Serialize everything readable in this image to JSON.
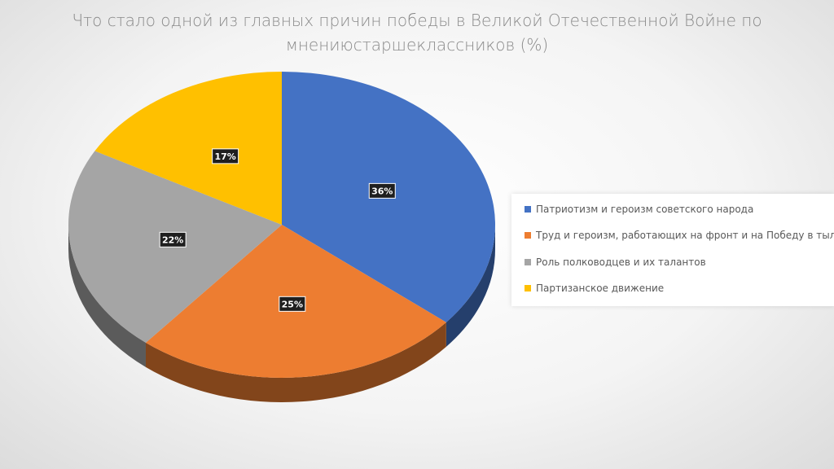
{
  "title_line1": "Что стало одной из главных причин победы в Великой Отечественной Войне по",
  "title_line2": "мнениюстаршеклассников (%)",
  "chart_data": {
    "type": "pie",
    "title": "Что стало одной из главных причин победы в Великой Отечественной Войне по мнениюстаршеклассников (%)",
    "legend_position": "right",
    "labels": [
      "Патриотизм и героизм советского народа",
      "Труд  и героизм, работающих на фронт и на Победу в тылу",
      "Роль полководцев и их талантов",
      "Партизанское движение"
    ],
    "values": [
      36,
      25,
      22,
      17
    ],
    "value_labels": [
      "36%",
      "25%",
      "22%",
      "17%"
    ],
    "colors": [
      "#4472C4",
      "#ED7D31",
      "#A5A5A5",
      "#FFC000"
    ],
    "style": "3d"
  }
}
